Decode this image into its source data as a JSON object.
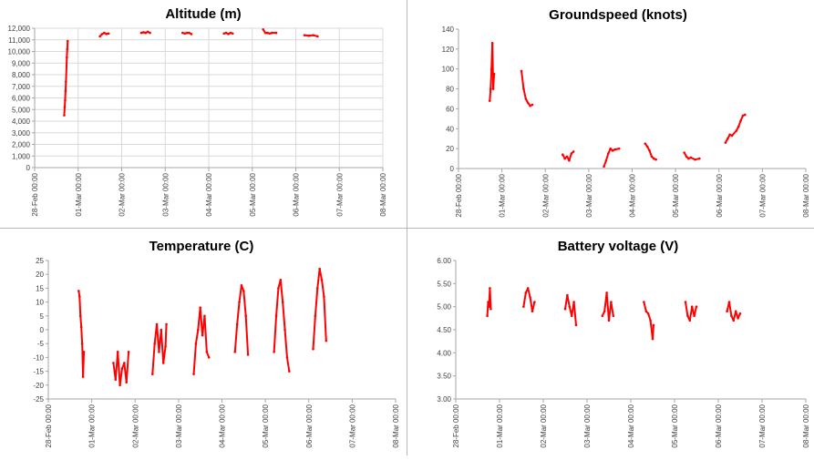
{
  "chart_data": [
    {
      "type": "scatter",
      "title": "Altitude (m)",
      "xlabel": "",
      "ylabel": "",
      "ylim": [
        0,
        12000
      ],
      "yticks": [
        0,
        1000,
        2000,
        3000,
        4000,
        5000,
        6000,
        7000,
        8000,
        9000,
        10000,
        11000,
        12000
      ],
      "ytick_labels": [
        "0",
        "1,000",
        "2,000",
        "3,000",
        "4,000",
        "5,000",
        "6,000",
        "7,000",
        "8,000",
        "9,000",
        "10,000",
        "11,000",
        "12,000"
      ],
      "xlim": [
        "2015-02-28 00:00",
        "2015-03-08 00:00"
      ],
      "xtick_labels": [
        "28-Feb 00:00",
        "01-Mar 00:00",
        "02-Mar 00:00",
        "03-Mar 00:00",
        "04-Mar 00:00",
        "05-Mar 00:00",
        "06-Mar 00:00",
        "07-Mar 00:00",
        "08-Mar 00:00"
      ],
      "grid": true,
      "series_color": "#ff0000",
      "series": [
        {
          "points": [
            [
              0.68,
              4500
            ],
            [
              0.69,
              5200
            ],
            [
              0.7,
              5800
            ],
            [
              0.71,
              6600
            ],
            [
              0.72,
              7400
            ],
            [
              0.74,
              9500
            ],
            [
              0.75,
              10200
            ],
            [
              0.76,
              10900
            ],
            [
              1.5,
              11300
            ],
            [
              1.55,
              11500
            ],
            [
              1.6,
              11600
            ],
            [
              1.65,
              11500
            ],
            [
              1.7,
              11550
            ],
            [
              2.45,
              11600
            ],
            [
              2.5,
              11650
            ],
            [
              2.55,
              11600
            ],
            [
              2.6,
              11700
            ],
            [
              2.65,
              11600
            ],
            [
              3.4,
              11600
            ],
            [
              3.45,
              11550
            ],
            [
              3.5,
              11600
            ],
            [
              3.55,
              11600
            ],
            [
              3.6,
              11500
            ],
            [
              4.35,
              11550
            ],
            [
              4.4,
              11600
            ],
            [
              4.45,
              11500
            ],
            [
              4.5,
              11600
            ],
            [
              4.55,
              11550
            ],
            [
              5.25,
              11900
            ],
            [
              5.3,
              11600
            ],
            [
              5.35,
              11600
            ],
            [
              5.4,
              11550
            ],
            [
              5.45,
              11600
            ],
            [
              5.55,
              11600
            ],
            [
              6.2,
              11400
            ],
            [
              6.3,
              11350
            ],
            [
              6.4,
              11400
            ],
            [
              6.5,
              11300
            ]
          ]
        }
      ]
    },
    {
      "type": "scatter",
      "title": "Groundspeed (knots)",
      "xlabel": "",
      "ylabel": "",
      "ylim": [
        0,
        140
      ],
      "yticks": [
        0,
        20,
        40,
        60,
        80,
        100,
        120,
        140
      ],
      "ytick_labels": [
        "0",
        "20",
        "40",
        "60",
        "80",
        "100",
        "120",
        "140"
      ],
      "xlim": [
        "2015-02-28 00:00",
        "2015-03-08 00:00"
      ],
      "xtick_labels": [
        "28-Feb 00:00",
        "01-Mar 00:00",
        "02-Mar 00:00",
        "03-Mar 00:00",
        "04-Mar 00:00",
        "05-Mar 00:00",
        "06-Mar 00:00",
        "07-Mar 00:00",
        "08-Mar 00:00"
      ],
      "grid": false,
      "series_color": "#ff0000",
      "series": [
        {
          "points": [
            [
              0.72,
              68
            ],
            [
              0.74,
              80
            ],
            [
              0.76,
              100
            ],
            [
              0.78,
              126
            ],
            [
              0.8,
              80
            ],
            [
              0.82,
              95
            ],
            [
              1.45,
              98
            ],
            [
              1.5,
              80
            ],
            [
              1.55,
              70
            ],
            [
              1.6,
              66
            ],
            [
              1.65,
              63
            ],
            [
              1.7,
              64
            ],
            [
              2.4,
              14
            ],
            [
              2.45,
              10
            ],
            [
              2.5,
              12
            ],
            [
              2.55,
              8
            ],
            [
              2.6,
              15
            ],
            [
              2.65,
              17
            ],
            [
              3.35,
              2
            ],
            [
              3.4,
              8
            ],
            [
              3.45,
              15
            ],
            [
              3.5,
              20
            ],
            [
              3.55,
              18
            ],
            [
              3.6,
              19
            ],
            [
              3.7,
              20
            ],
            [
              4.3,
              25
            ],
            [
              4.35,
              22
            ],
            [
              4.4,
              18
            ],
            [
              4.45,
              12
            ],
            [
              4.5,
              10
            ],
            [
              4.55,
              9
            ],
            [
              5.2,
              16
            ],
            [
              5.25,
              12
            ],
            [
              5.3,
              10
            ],
            [
              5.35,
              11
            ],
            [
              5.45,
              9
            ],
            [
              5.55,
              10
            ],
            [
              6.15,
              26
            ],
            [
              6.2,
              30
            ],
            [
              6.25,
              34
            ],
            [
              6.3,
              33
            ],
            [
              6.4,
              38
            ],
            [
              6.45,
              42
            ],
            [
              6.5,
              48
            ],
            [
              6.55,
              53
            ],
            [
              6.6,
              54
            ]
          ]
        }
      ]
    },
    {
      "type": "scatter",
      "title": "Temperature (C)",
      "xlabel": "",
      "ylabel": "",
      "ylim": [
        -25,
        25
      ],
      "yticks": [
        -25,
        -20,
        -15,
        -10,
        -5,
        0,
        5,
        10,
        15,
        20,
        25
      ],
      "ytick_labels": [
        "-25",
        "-20",
        "-15",
        "-10",
        "-5",
        "0",
        "5",
        "10",
        "15",
        "20",
        "25"
      ],
      "xlim": [
        "2015-02-28 00:00",
        "2015-03-08 00:00"
      ],
      "xtick_labels": [
        "28-Feb 00:00",
        "01-Mar 00:00",
        "02-Mar 00:00",
        "03-Mar 00:00",
        "04-Mar 00:00",
        "05-Mar 00:00",
        "06-Mar 00:00",
        "07-Mar 00:00",
        "08-Mar 00:00"
      ],
      "grid": false,
      "series_color": "#ff0000",
      "series": [
        {
          "points": [
            [
              0.7,
              14
            ],
            [
              0.72,
              12
            ],
            [
              0.74,
              5
            ],
            [
              0.76,
              1
            ],
            [
              0.78,
              -5
            ],
            [
              0.8,
              -17
            ],
            [
              0.82,
              -8
            ],
            [
              1.5,
              -12
            ],
            [
              1.55,
              -18
            ],
            [
              1.6,
              -8
            ],
            [
              1.65,
              -20
            ],
            [
              1.7,
              -14
            ],
            [
              1.75,
              -12
            ],
            [
              1.8,
              -19
            ],
            [
              1.85,
              -8
            ],
            [
              2.4,
              -16
            ],
            [
              2.45,
              -5
            ],
            [
              2.5,
              2
            ],
            [
              2.55,
              -8
            ],
            [
              2.6,
              0
            ],
            [
              2.65,
              -12
            ],
            [
              2.7,
              -6
            ],
            [
              2.72,
              2
            ],
            [
              3.35,
              -16
            ],
            [
              3.4,
              -5
            ],
            [
              3.45,
              0
            ],
            [
              3.5,
              8
            ],
            [
              3.55,
              -2
            ],
            [
              3.6,
              5
            ],
            [
              3.65,
              -8
            ],
            [
              3.7,
              -10
            ],
            [
              4.3,
              -8
            ],
            [
              4.35,
              2
            ],
            [
              4.4,
              10
            ],
            [
              4.45,
              16
            ],
            [
              4.5,
              14
            ],
            [
              4.55,
              5
            ],
            [
              4.6,
              -9
            ],
            [
              5.2,
              -8
            ],
            [
              5.25,
              5
            ],
            [
              5.3,
              15
            ],
            [
              5.35,
              18
            ],
            [
              5.4,
              10
            ],
            [
              5.45,
              0
            ],
            [
              5.5,
              -10
            ],
            [
              5.55,
              -15
            ],
            [
              6.1,
              -7
            ],
            [
              6.15,
              5
            ],
            [
              6.2,
              15
            ],
            [
              6.25,
              22
            ],
            [
              6.3,
              18
            ],
            [
              6.35,
              12
            ],
            [
              6.4,
              -4
            ]
          ]
        }
      ]
    },
    {
      "type": "scatter",
      "title": "Battery voltage (V)",
      "xlabel": "",
      "ylabel": "",
      "ylim": [
        3.0,
        6.0
      ],
      "yticks": [
        3.0,
        3.5,
        4.0,
        4.5,
        5.0,
        5.5,
        6.0
      ],
      "ytick_labels": [
        "3.00",
        "3.50",
        "4.00",
        "4.50",
        "5.00",
        "5.50",
        "6.00"
      ],
      "xlim": [
        "2015-02-28 00:00",
        "2015-03-08 00:00"
      ],
      "xtick_labels": [
        "28-Feb 00:00",
        "01-Mar 00:00",
        "02-Mar 00:00",
        "03-Mar 00:00",
        "04-Mar 00:00",
        "05-Mar 00:00",
        "06-Mar 00:00",
        "07-Mar 00:00",
        "08-Mar 00:00"
      ],
      "grid": false,
      "series_color": "#ff0000",
      "series": [
        {
          "points": [
            [
              0.72,
              4.8
            ],
            [
              0.74,
              5.1
            ],
            [
              0.76,
              5.0
            ],
            [
              0.78,
              5.4
            ],
            [
              0.8,
              4.95
            ],
            [
              1.55,
              5.0
            ],
            [
              1.6,
              5.3
            ],
            [
              1.65,
              5.4
            ],
            [
              1.7,
              5.2
            ],
            [
              1.75,
              4.9
            ],
            [
              1.8,
              5.1
            ],
            [
              2.5,
              4.95
            ],
            [
              2.55,
              5.25
            ],
            [
              2.6,
              5.0
            ],
            [
              2.65,
              4.8
            ],
            [
              2.7,
              5.1
            ],
            [
              2.75,
              4.6
            ],
            [
              3.35,
              4.8
            ],
            [
              3.4,
              4.9
            ],
            [
              3.45,
              5.3
            ],
            [
              3.5,
              4.7
            ],
            [
              3.55,
              5.1
            ],
            [
              3.6,
              4.8
            ],
            [
              4.3,
              5.1
            ],
            [
              4.35,
              4.9
            ],
            [
              4.4,
              4.85
            ],
            [
              4.45,
              4.7
            ],
            [
              4.5,
              4.3
            ],
            [
              4.52,
              4.6
            ],
            [
              5.25,
              5.1
            ],
            [
              5.3,
              4.8
            ],
            [
              5.35,
              4.7
            ],
            [
              5.4,
              5.0
            ],
            [
              5.45,
              4.8
            ],
            [
              5.5,
              5.0
            ],
            [
              6.2,
              4.9
            ],
            [
              6.25,
              5.1
            ],
            [
              6.3,
              4.8
            ],
            [
              6.35,
              4.7
            ],
            [
              6.4,
              4.9
            ],
            [
              6.45,
              4.75
            ],
            [
              6.5,
              4.85
            ]
          ]
        }
      ]
    }
  ]
}
